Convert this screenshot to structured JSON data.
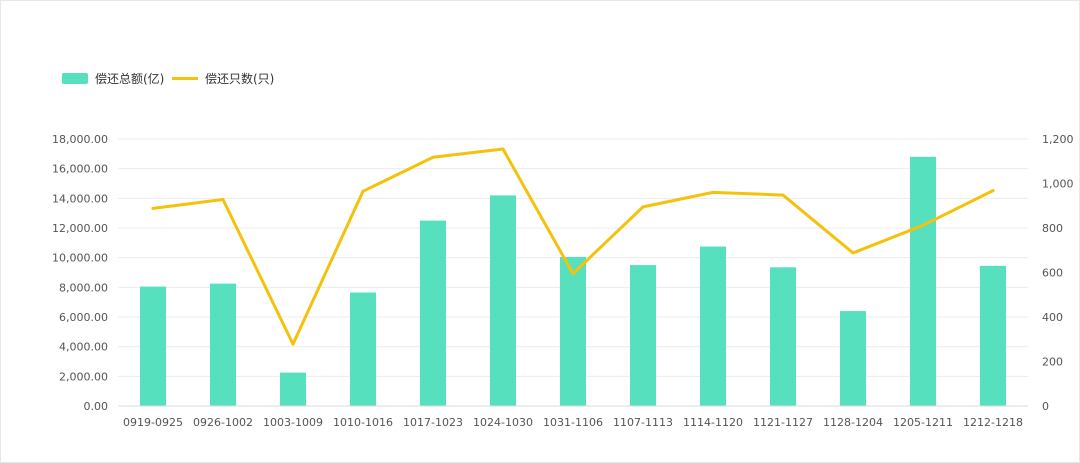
{
  "chart_data": {
    "type": "bar",
    "categories": [
      "0919-0925",
      "0926-1002",
      "1003-1009",
      "1010-1016",
      "1017-1023",
      "1024-1030",
      "1031-1106",
      "1107-1113",
      "1114-1120",
      "1121-1127",
      "1128-1204",
      "1205-1211",
      "1212-1218"
    ],
    "series": [
      {
        "name": "偿还总额(亿)",
        "type": "bar",
        "axis": "left",
        "color": "#56E0BE",
        "values": [
          8050,
          8250,
          2250,
          7650,
          12500,
          14200,
          10050,
          9500,
          10750,
          9350,
          6400,
          16800,
          9450
        ]
      },
      {
        "name": "偿还只数(只)",
        "type": "line",
        "axis": "right",
        "color": "#F4C20D",
        "values": [
          888,
          928,
          278,
          965,
          1118,
          1155,
          595,
          895,
          960,
          948,
          688,
          812,
          968
        ]
      }
    ],
    "y_left": {
      "range": [
        0,
        18000
      ],
      "ticks": [
        "0.00",
        "2,000.00",
        "4,000.00",
        "6,000.00",
        "8,000.00",
        "10,000.00",
        "12,000.00",
        "14,000.00",
        "16,000.00",
        "18,000.00"
      ]
    },
    "y_right": {
      "range": [
        0,
        1200
      ],
      "ticks": [
        "0",
        "200",
        "400",
        "600",
        "800",
        "1,000",
        "1,200"
      ]
    },
    "grid": true,
    "legend_position": "top-left"
  }
}
